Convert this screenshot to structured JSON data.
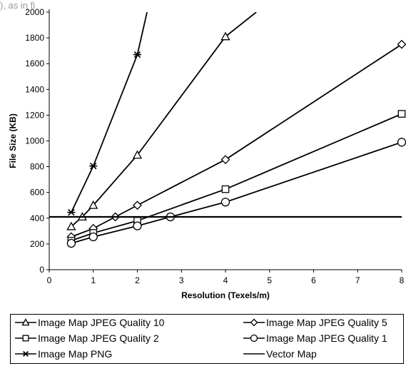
{
  "header_fragment": "), as in fi",
  "chart_data": {
    "type": "line",
    "title": "",
    "xlabel": "Resolution (Texels/m)",
    "ylabel": "File Size (KB)",
    "xlim": [
      0,
      8
    ],
    "ylim": [
      0,
      2000
    ],
    "xticks": [
      "0",
      "1",
      "2",
      "3",
      "4",
      "5",
      "6",
      "7",
      "8"
    ],
    "yticks": [
      "0",
      "200",
      "400",
      "600",
      "800",
      "1000",
      "1200",
      "1400",
      "1600",
      "1800",
      "2000"
    ],
    "grid": false,
    "legend_position": "bottom",
    "series": [
      {
        "name": "Image Map JPEG Quality 10",
        "marker": "triangle",
        "x": [
          0.5,
          0.75,
          1,
          2,
          4,
          4.7
        ],
        "y": [
          335,
          410,
          500,
          890,
          1810,
          2000
        ]
      },
      {
        "name": "Image Map JPEG Quality 5",
        "marker": "diamond",
        "x": [
          0.5,
          1,
          1.5,
          2,
          4,
          8
        ],
        "y": [
          255,
          320,
          410,
          500,
          855,
          1750
        ]
      },
      {
        "name": "Image Map JPEG Quality 2",
        "marker": "square",
        "x": [
          0.5,
          1,
          2,
          4,
          8
        ],
        "y": [
          225,
          285,
          380,
          625,
          1210
        ]
      },
      {
        "name": "Image Map JPEG Quality 1",
        "marker": "circle",
        "x": [
          0.5,
          1,
          2,
          2.75,
          4,
          8
        ],
        "y": [
          205,
          255,
          340,
          410,
          525,
          990
        ]
      },
      {
        "name": "Image Map PNG",
        "marker": "star",
        "x": [
          0.5,
          1,
          2,
          2.22
        ],
        "y": [
          445,
          805,
          1670,
          2000
        ]
      },
      {
        "name": "Vector Map",
        "marker": "none",
        "x": [
          0,
          8
        ],
        "y": [
          410,
          410
        ]
      }
    ]
  },
  "legend": {
    "items": [
      {
        "label": "Image Map JPEG Quality 10",
        "marker": "triangle"
      },
      {
        "label": "Image Map JPEG Quality 5",
        "marker": "diamond"
      },
      {
        "label": "Image Map JPEG Quality 2",
        "marker": "square"
      },
      {
        "label": "Image Map JPEG Quality 1",
        "marker": "circle"
      },
      {
        "label": "Image Map PNG",
        "marker": "star"
      },
      {
        "label": "Vector Map",
        "marker": "none"
      }
    ]
  }
}
